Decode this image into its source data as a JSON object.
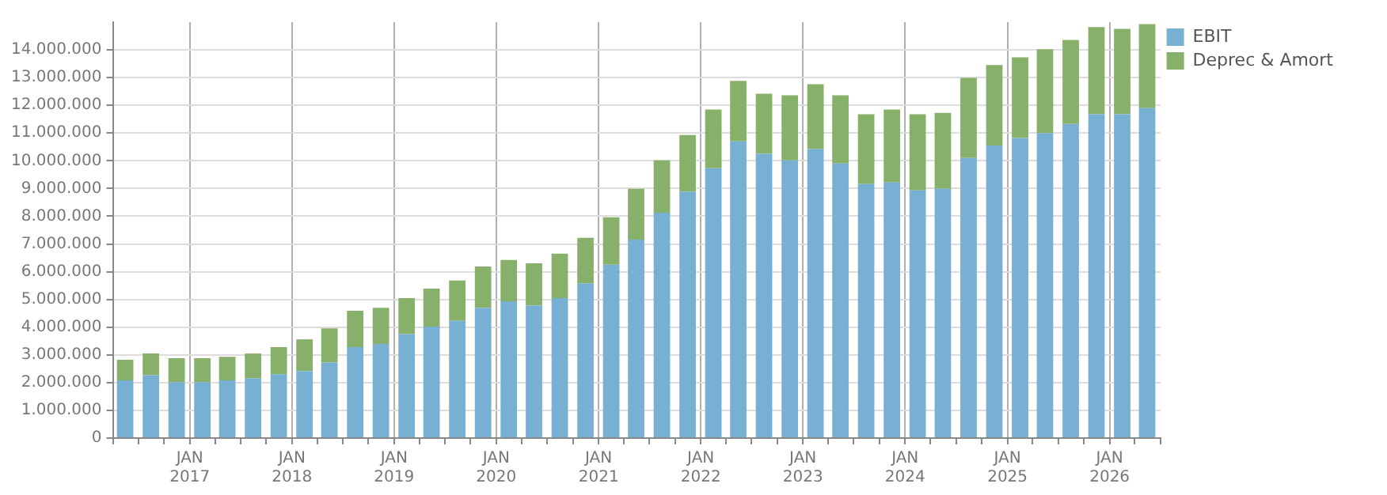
{
  "chart_data": {
    "type": "bar",
    "stacked": true,
    "grid": true,
    "legend": "right",
    "x": [
      "2016-05-15",
      "2016-08-15",
      "2016-11-15",
      "2017-02-15",
      "2017-05-15",
      "2017-08-15",
      "2017-11-15",
      "2018-02-15",
      "2018-05-15",
      "2018-08-15",
      "2018-11-15",
      "2019-02-15",
      "2019-05-15",
      "2019-08-15",
      "2019-11-15",
      "2020-02-15",
      "2020-05-15",
      "2020-08-15",
      "2020-11-15",
      "2021-02-15",
      "2021-05-15",
      "2021-08-15",
      "2021-11-15",
      "2022-02-15",
      "2022-05-15",
      "2022-08-15",
      "2022-11-15",
      "2023-02-15",
      "2023-05-15",
      "2023-08-15",
      "2023-11-15",
      "2024-02-15",
      "2024-05-15",
      "2024-08-15",
      "2024-11-15",
      "2025-02-15",
      "2025-05-15",
      "2025-08-15",
      "2025-11-15",
      "2026-02-15",
      "2026-05-15"
    ],
    "series": [
      {
        "name": "EBIT",
        "color": "#78b0d3",
        "values": [
          2080000,
          2270000,
          2020000,
          2020000,
          2080000,
          2150000,
          2300000,
          2420000,
          2720000,
          3280000,
          3390000,
          3750000,
          4020000,
          4230000,
          4700000,
          4930000,
          4780000,
          5050000,
          5580000,
          6250000,
          7160000,
          8130000,
          8880000,
          9730000,
          10700000,
          10250000,
          10020000,
          10420000,
          9900000,
          9160000,
          9220000,
          8930000,
          8990000,
          10100000,
          10550000,
          10820000,
          10990000,
          11330000,
          11680000,
          11680000,
          11900000
        ]
      },
      {
        "name": "Deprec & Amort",
        "color": "#87b06a",
        "values": [
          740000,
          780000,
          860000,
          860000,
          850000,
          900000,
          980000,
          1140000,
          1240000,
          1310000,
          1310000,
          1300000,
          1370000,
          1450000,
          1490000,
          1490000,
          1520000,
          1600000,
          1640000,
          1710000,
          1830000,
          1890000,
          2050000,
          2120000,
          2180000,
          2170000,
          2340000,
          2340000,
          2460000,
          2520000,
          2630000,
          2750000,
          2740000,
          2890000,
          2900000,
          2910000,
          3030000,
          3030000,
          3140000,
          3080000,
          3030000
        ]
      }
    ],
    "xlim": [
      "2016-04-01",
      "2026-07-01"
    ],
    "xticks": [
      {
        "value": "2016-04-01",
        "label": null
      },
      {
        "value": "2016-07-01",
        "label": null
      },
      {
        "value": "2016-10-01",
        "label": null
      },
      {
        "value": "2017-01-01",
        "label": "JAN\n2017"
      },
      {
        "value": "2017-04-01",
        "label": null
      },
      {
        "value": "2017-07-01",
        "label": null
      },
      {
        "value": "2017-10-01",
        "label": null
      },
      {
        "value": "2018-01-01",
        "label": "JAN\n2018"
      },
      {
        "value": "2018-04-01",
        "label": null
      },
      {
        "value": "2018-07-01",
        "label": null
      },
      {
        "value": "2018-10-01",
        "label": null
      },
      {
        "value": "2019-01-01",
        "label": "JAN\n2019"
      },
      {
        "value": "2019-04-01",
        "label": null
      },
      {
        "value": "2019-07-01",
        "label": null
      },
      {
        "value": "2019-10-01",
        "label": null
      },
      {
        "value": "2020-01-01",
        "label": "JAN\n2020"
      },
      {
        "value": "2020-04-01",
        "label": null
      },
      {
        "value": "2020-07-01",
        "label": null
      },
      {
        "value": "2020-10-01",
        "label": null
      },
      {
        "value": "2021-01-01",
        "label": "JAN\n2021"
      },
      {
        "value": "2021-04-01",
        "label": null
      },
      {
        "value": "2021-07-01",
        "label": null
      },
      {
        "value": "2021-10-01",
        "label": null
      },
      {
        "value": "2022-01-01",
        "label": "JAN\n2022"
      },
      {
        "value": "2022-04-01",
        "label": null
      },
      {
        "value": "2022-07-01",
        "label": null
      },
      {
        "value": "2022-10-01",
        "label": null
      },
      {
        "value": "2023-01-01",
        "label": "JAN\n2023"
      },
      {
        "value": "2023-04-01",
        "label": null
      },
      {
        "value": "2023-07-01",
        "label": null
      },
      {
        "value": "2023-10-01",
        "label": null
      },
      {
        "value": "2024-01-01",
        "label": "JAN\n2024"
      },
      {
        "value": "2024-04-01",
        "label": null
      },
      {
        "value": "2024-07-01",
        "label": null
      },
      {
        "value": "2024-10-01",
        "label": null
      },
      {
        "value": "2025-01-01",
        "label": "JAN\n2025"
      },
      {
        "value": "2025-04-01",
        "label": null
      },
      {
        "value": "2025-07-01",
        "label": null
      },
      {
        "value": "2025-10-01",
        "label": null
      },
      {
        "value": "2026-01-01",
        "label": "JAN\n2026"
      },
      {
        "value": "2026-04-01",
        "label": null
      },
      {
        "value": "2026-07-01",
        "label": null
      }
    ],
    "ylim": [
      0,
      15000000
    ],
    "yticks": [
      {
        "value": 0,
        "label": "0"
      },
      {
        "value": 1000000,
        "label": "1.000.000"
      },
      {
        "value": 2000000,
        "label": "2.000.000"
      },
      {
        "value": 3000000,
        "label": "3.000.000"
      },
      {
        "value": 4000000,
        "label": "4.000.000"
      },
      {
        "value": 5000000,
        "label": "5.000.000"
      },
      {
        "value": 6000000,
        "label": "6.000.000"
      },
      {
        "value": 7000000,
        "label": "7.000.000"
      },
      {
        "value": 8000000,
        "label": "8.000.000"
      },
      {
        "value": 9000000,
        "label": "9.000.000"
      },
      {
        "value": 10000000,
        "label": "10.000.000"
      },
      {
        "value": 11000000,
        "label": "11.000.000"
      },
      {
        "value": 12000000,
        "label": "12.000.000"
      },
      {
        "value": 13000000,
        "label": "13.000.000"
      },
      {
        "value": 14000000,
        "label": "14.000.000"
      }
    ]
  }
}
